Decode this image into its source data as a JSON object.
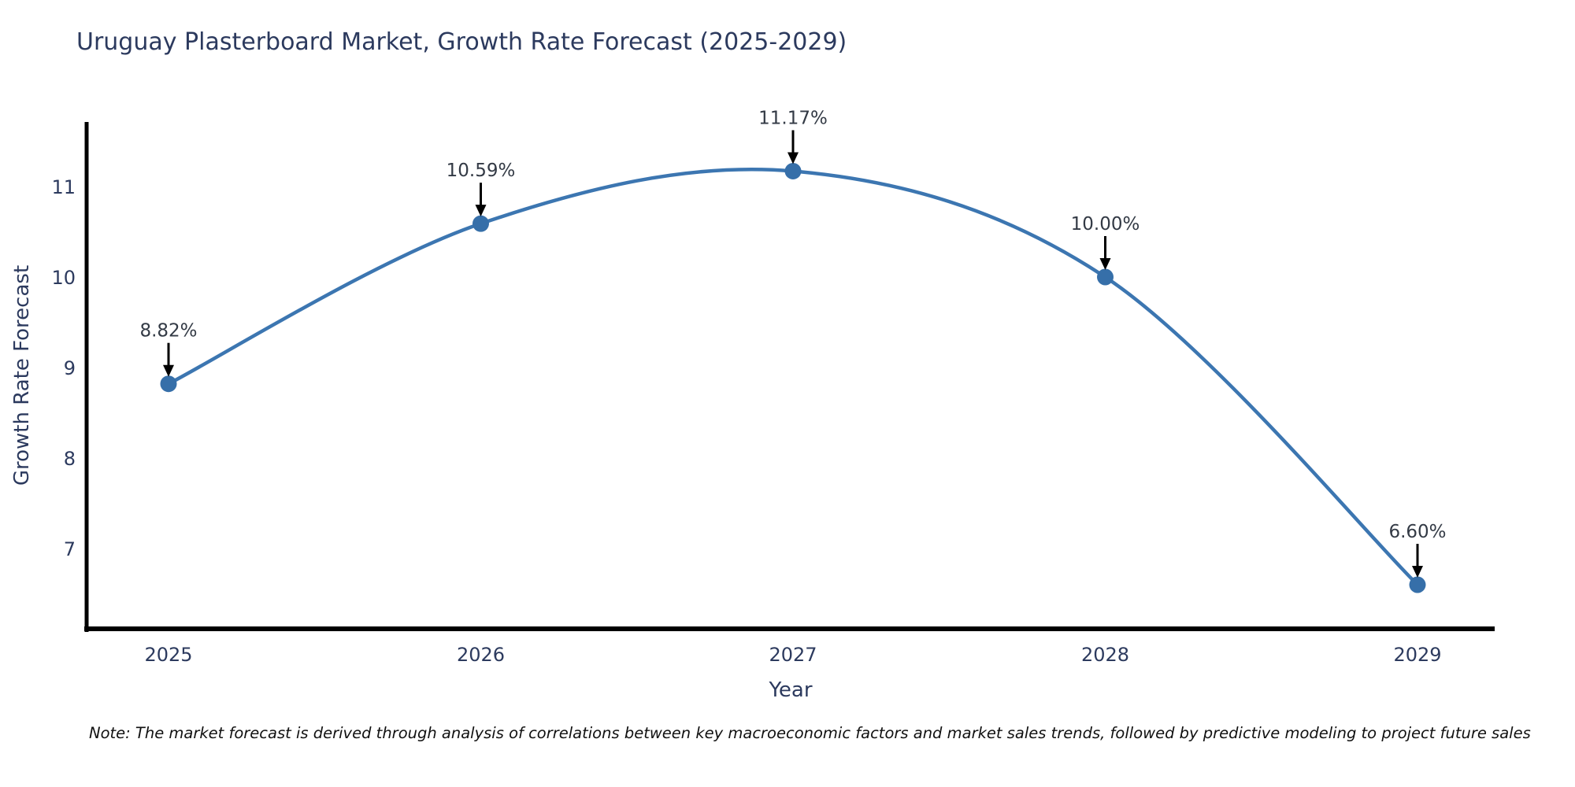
{
  "title": "Uruguay Plasterboard Market, Growth Rate Forecast (2025-2029)",
  "note": "Note: The market forecast is derived through analysis of correlations between key macroeconomic factors and market sales trends, followed by predictive modeling to project future sales",
  "chart_data": {
    "type": "line",
    "line_shape": "spline",
    "title": "Uruguay Plasterboard Market, Growth Rate Forecast (2025-2029)",
    "xlabel": "Year",
    "ylabel": "Growth Rate Forecast",
    "x": [
      2025,
      2026,
      2027,
      2028,
      2029
    ],
    "values": [
      8.82,
      10.59,
      11.17,
      10.0,
      6.6
    ],
    "point_labels": [
      "8.82%",
      "10.59%",
      "11.17%",
      "10.00%",
      "6.60%"
    ],
    "xtick_labels": [
      "2025",
      "2026",
      "2027",
      "2028",
      "2029"
    ],
    "yticks": [
      7,
      8,
      9,
      10,
      11
    ],
    "ylim": [
      6.1,
      11.76
    ],
    "xlim": [
      2024.74,
      2029.25
    ],
    "grid": false,
    "legend": "none",
    "annotations_have_arrows": true,
    "colors": {
      "line": "#3c76b1",
      "marker": "#366fa9",
      "axis_line": "#000000",
      "text": "#2c3a5e",
      "annotation_text": "#333a45",
      "arrow": "#000000",
      "note_text": "#111111",
      "background": "#ffffff"
    }
  }
}
